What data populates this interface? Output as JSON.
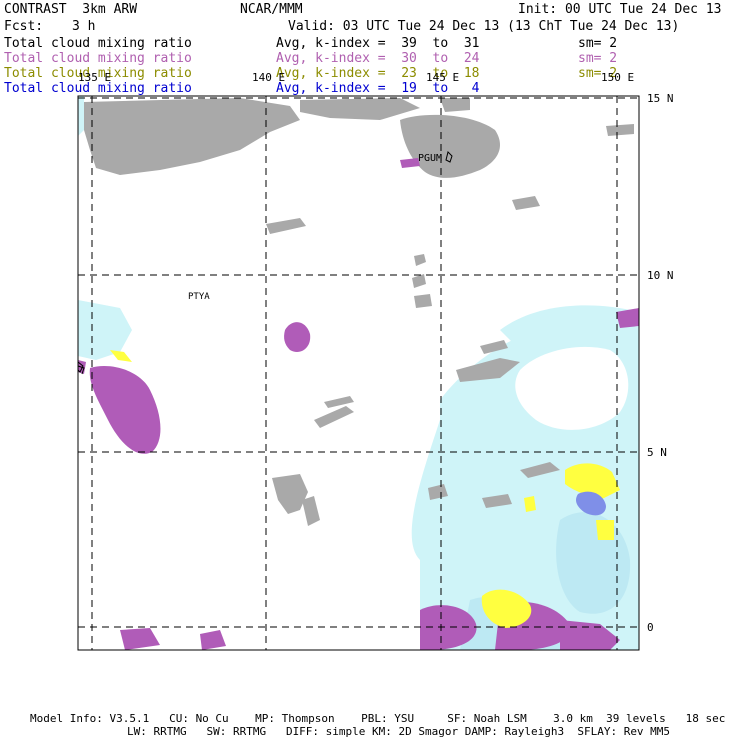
{
  "header": {
    "product": "CONTRAST  3km ARW",
    "org": "NCAR/MMM",
    "init": "Init: 00 UTC Tue 24 Dec 13",
    "fcst_label": "Fcst:",
    "fcst_value": "3 h",
    "valid": "Valid: 03 UTC Tue 24 Dec 13 (13 ChT Tue 24 Dec 13)"
  },
  "fields": [
    {
      "name": "Total cloud mixing ratio",
      "stat": "Avg, k-index =  39  to  31",
      "sm": "sm= 2",
      "color": "#000000"
    },
    {
      "name": "Total cloud mixing ratio",
      "stat": "Avg, k-index =  30  to  24",
      "sm": "sm= 2",
      "color": "#b060b0"
    },
    {
      "name": "Total cloud mixing ratio",
      "stat": "Avg, k-index =  23  to  18",
      "sm": "sm= 2",
      "color": "#8c8c00"
    },
    {
      "name": "Total cloud mixing ratio",
      "stat": "Avg, k-index =  19  to   4",
      "sm": "",
      "color": "#0000d0"
    }
  ],
  "map": {
    "lon_labels": [
      "135 E",
      "140 E",
      "145 E",
      "150 E"
    ],
    "lat_labels": [
      "15 N",
      "10 N",
      "5 N",
      "0"
    ],
    "places": [
      "PGUM",
      "PTYA"
    ],
    "colors": {
      "gray": "#a9a9a9",
      "purple": "#b05cb8",
      "yellow": "#ffff40",
      "lightblue": "#cff4f8",
      "blue": "#7f8fe8"
    }
  },
  "footer": {
    "line1": "Model Info: V3.5.1   CU: No Cu    MP: Thompson    PBL: YSU     SF: Noah LSM    3.0 km  39 levels   18 sec",
    "line2": "LW: RRTMG   SW: RRTMG   DIFF: simple KM: 2D Smagor DAMP: Rayleigh3  SFLAY: Rev MM5"
  }
}
